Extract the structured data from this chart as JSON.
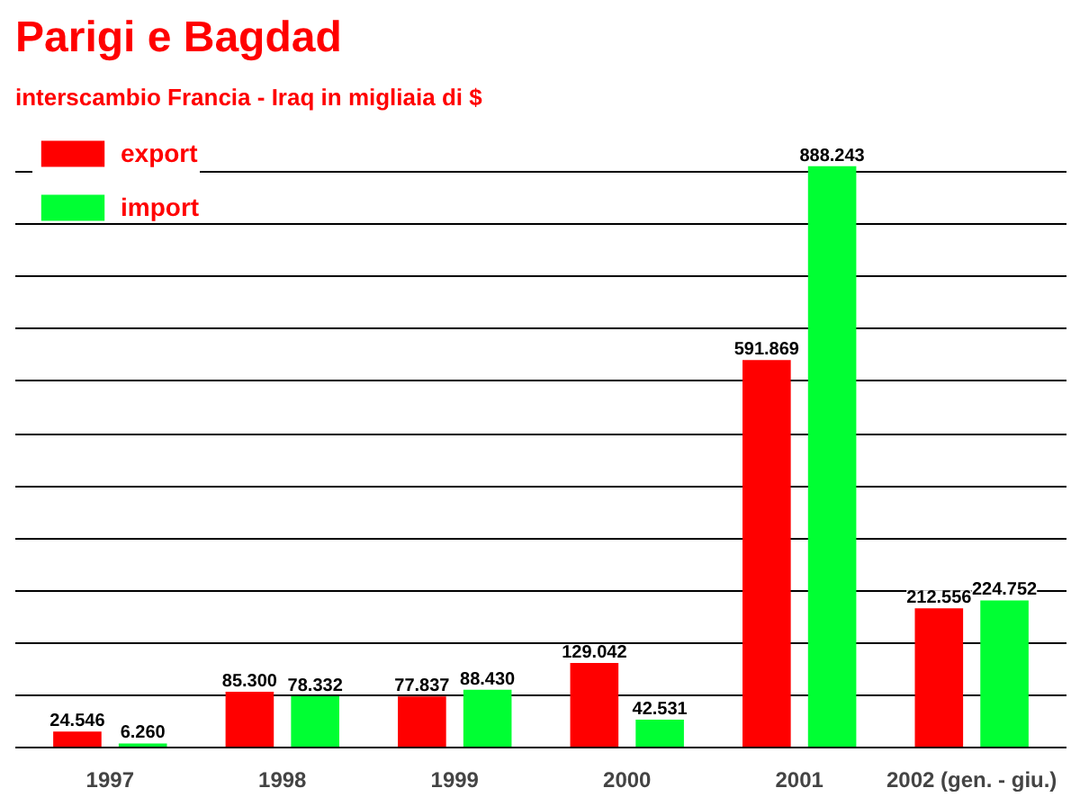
{
  "chart_data": {
    "type": "bar",
    "title": "Parigi e Bagdad",
    "subtitle": "interscambio Francia - Iraq in migliaia di $",
    "categories": [
      "1997",
      "1998",
      "1999",
      "2000",
      "2001",
      "2002 (gen. - giu.)"
    ],
    "series": [
      {
        "name": "export",
        "color": "#ff0000",
        "values": [
          24546,
          85300,
          77837,
          129042,
          591869,
          212556
        ],
        "value_labels": [
          "24.546",
          "85.300",
          "77.837",
          "129.042",
          "591.869",
          "212.556"
        ]
      },
      {
        "name": "import",
        "color": "#00ff33",
        "values": [
          6260,
          78332,
          88430,
          42531,
          888243,
          224752
        ],
        "value_labels": [
          "6.260",
          "78.332",
          "88.430",
          "42.531",
          "888.243",
          "224.752"
        ]
      }
    ],
    "tick_labels": "x",
    "grid": "y",
    "legend": "top left"
  }
}
